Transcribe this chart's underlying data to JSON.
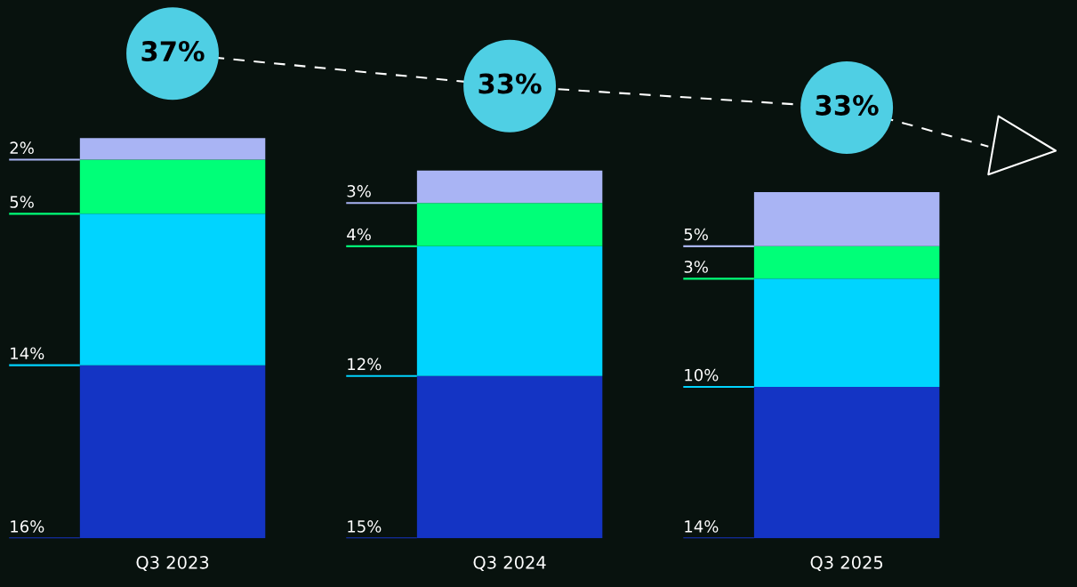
{
  "chart_data": {
    "type": "bar",
    "stacked": true,
    "tick_labels": "x",
    "categories": [
      "Q3 2023",
      "Q3 2024",
      "Q3 2025"
    ],
    "series": [
      {
        "color": "#1434c4",
        "values": [
          16,
          15,
          14
        ],
        "value_labels": [
          "16%",
          "15%",
          "14%"
        ]
      },
      {
        "color": "#00d4ff",
        "values": [
          14,
          12,
          10
        ],
        "value_labels": [
          "14%",
          "12%",
          "10%"
        ]
      },
      {
        "color": "#00ff78",
        "values": [
          5,
          4,
          3
        ],
        "value_labels": [
          "5%",
          "4%",
          "3%"
        ]
      },
      {
        "color": "#a9b4f4",
        "values": [
          2,
          3,
          5
        ],
        "value_labels": [
          "2%",
          "3%",
          "5%"
        ]
      }
    ],
    "totals": [
      "37%",
      "33%",
      "33%"
    ]
  }
}
